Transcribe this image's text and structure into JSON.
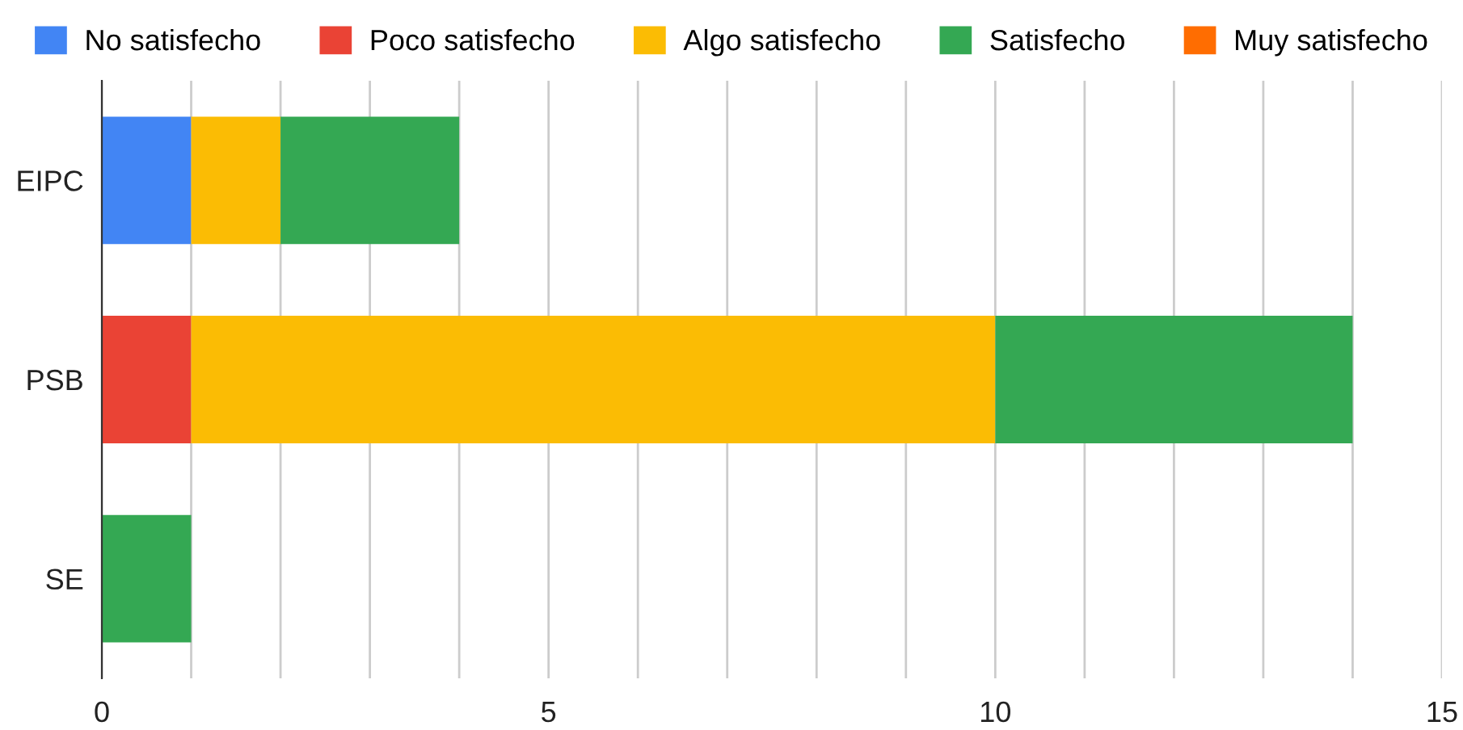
{
  "chart_data": {
    "type": "bar",
    "orientation": "horizontal",
    "stacked": true,
    "categories": [
      "EIPC",
      "PSB",
      "SE"
    ],
    "series": [
      {
        "name": "No satisfecho",
        "color": "#4285f4",
        "values": [
          1,
          null,
          null
        ]
      },
      {
        "name": "Poco satisfecho",
        "color": "#ea4335",
        "values": [
          null,
          1,
          null
        ]
      },
      {
        "name": "Algo satisfecho",
        "color": "#fbbc04",
        "values": [
          1,
          9,
          null
        ]
      },
      {
        "name": "Satisfecho",
        "color": "#34a853",
        "values": [
          2,
          4,
          1
        ]
      },
      {
        "name": "Muy satisfecho",
        "color": "#ff6d01",
        "values": [
          null,
          null,
          null
        ]
      }
    ],
    "xlim": [
      0,
      15
    ],
    "xticks": [
      0,
      {
        "value": 1,
        "label": null
      },
      {
        "value": 2,
        "label": null
      },
      {
        "value": 3,
        "label": null
      },
      {
        "value": 4,
        "label": null
      },
      5,
      {
        "value": 6,
        "label": null
      },
      {
        "value": 7,
        "label": null
      },
      {
        "value": 8,
        "label": null
      },
      {
        "value": 9,
        "label": null
      },
      10,
      {
        "value": 11,
        "label": null
      },
      {
        "value": 12,
        "label": null
      },
      {
        "value": 13,
        "label": null
      },
      {
        "value": 14,
        "label": null
      },
      15
    ],
    "grid": "x",
    "legend": "top"
  }
}
